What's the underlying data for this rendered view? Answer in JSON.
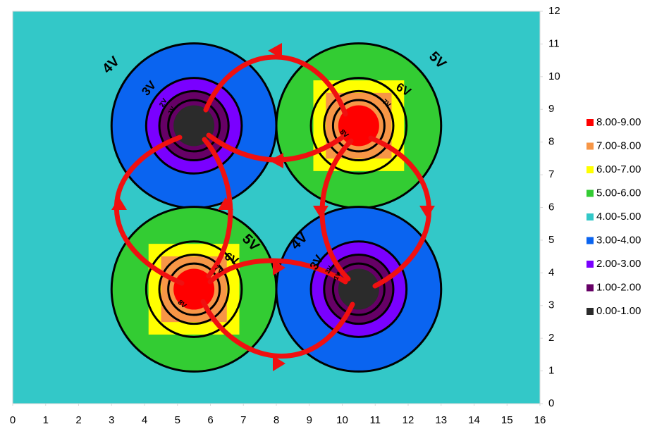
{
  "chart_data": {
    "type": "contour",
    "xlim": [
      0,
      16
    ],
    "ylim": [
      0,
      12
    ],
    "xticks": [
      0,
      1,
      2,
      3,
      4,
      5,
      6,
      7,
      8,
      9,
      10,
      11,
      12,
      13,
      14,
      15,
      16
    ],
    "yticks": [
      0,
      1,
      2,
      3,
      4,
      5,
      6,
      7,
      8,
      9,
      10,
      11,
      12
    ],
    "legend": {
      "position": "right",
      "entries": [
        {
          "label": "8.00-9.00",
          "color": "#ff0000"
        },
        {
          "label": "7.00-8.00",
          "color": "#f79646"
        },
        {
          "label": "6.00-7.00",
          "color": "#ffff00"
        },
        {
          "label": "5.00-6.00",
          "color": "#33cc33"
        },
        {
          "label": "4.00-5.00",
          "color": "#33c8c8"
        },
        {
          "label": "3.00-4.00",
          "color": "#0a64f0"
        },
        {
          "label": "2.00-3.00",
          "color": "#7a00ff"
        },
        {
          "label": "1.00-2.00",
          "color": "#660066"
        },
        {
          "label": "0.00-1.00",
          "color": "#2b2b2b"
        }
      ]
    },
    "sources": [
      {
        "x": 5.5,
        "y": 8.5,
        "color": "#2b2b2b"
      },
      {
        "x": 10.5,
        "y": 8.5,
        "color": "#ff0000"
      },
      {
        "x": 5.5,
        "y": 3.5,
        "color": "#ff0000"
      },
      {
        "x": 10.5,
        "y": 3.5,
        "color": "#2b2b2b"
      }
    ],
    "annotations": [
      "4V",
      "3V",
      "2V",
      "1V",
      "5V",
      "6V",
      "7V",
      "8V",
      "5V",
      "6V",
      "7V",
      "8V",
      "4V",
      "3V",
      "2V",
      "1V"
    ]
  }
}
